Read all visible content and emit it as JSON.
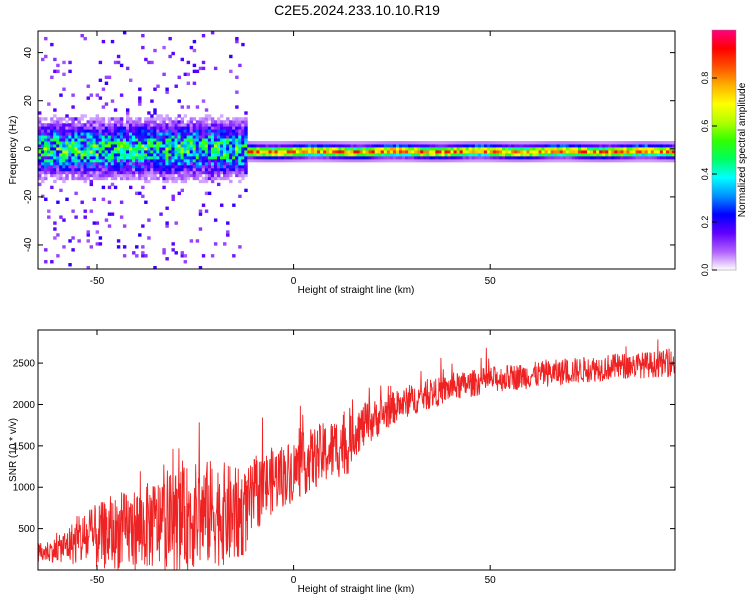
{
  "page": {
    "title": "C2E5.2024.233.10.10.R19"
  },
  "chart_data": [
    {
      "type": "heatmap",
      "title": "C2E5.2024.233.10.10.R19",
      "xlabel": "Height of straight line (km)",
      "ylabel": "Frequency (Hz)",
      "xlim": [
        -65,
        97
      ],
      "ylim": [
        -50,
        49
      ],
      "x_ticks": [
        -50,
        0,
        50
      ],
      "y_ticks": [
        -40,
        -20,
        0,
        20,
        40
      ],
      "colorbar": {
        "label": "Normalized spectral amplitude",
        "range": [
          0,
          1
        ],
        "ticks": [
          "0.0",
          "0.2",
          "0.4",
          "0.6",
          "0.8"
        ],
        "colors": [
          "#ffffff",
          "#b060ff",
          "#6000ff",
          "#0000ff",
          "#0090ff",
          "#00ffff",
          "#00ff60",
          "#30ff00",
          "#b0ff00",
          "#ffff00",
          "#ffb000",
          "#ff5000",
          "#ff0000",
          "#ff0080"
        ]
      },
      "features": [
        {
          "x_range": [
            -65,
            -12
          ],
          "center_freq": 0,
          "spread": 6,
          "peak": 0.55,
          "structure": "noisy scattered blobs"
        },
        {
          "x_range": [
            -12,
            97
          ],
          "center_freq": -1,
          "spread": 3,
          "peak": 0.9,
          "structure": "continuous narrow band"
        }
      ]
    },
    {
      "type": "line",
      "xlabel": "Height of straight line (km)",
      "ylabel": "SNR (10 * v/v)",
      "xlim": [
        -65,
        97
      ],
      "ylim": [
        0,
        2900
      ],
      "x_ticks": [
        -50,
        0,
        50
      ],
      "y_ticks": [
        500,
        1000,
        1500,
        2000,
        2500
      ],
      "color": "#ee2222",
      "trend": {
        "x": [
          -65,
          -60,
          -55,
          -50,
          -45,
          -40,
          -35,
          -30,
          -25,
          -20,
          -15,
          -12,
          -10,
          -5,
          0,
          5,
          10,
          13,
          14,
          15,
          20,
          25,
          30,
          40,
          50,
          60,
          70,
          80,
          90,
          97
        ],
        "mean": [
          200,
          250,
          350,
          400,
          450,
          500,
          550,
          600,
          650,
          700,
          650,
          700,
          900,
          1100,
          1200,
          1350,
          1450,
          1550,
          1450,
          1650,
          1800,
          1950,
          2050,
          2200,
          2300,
          2350,
          2400,
          2450,
          2480,
          2500
        ],
        "variability": [
          120,
          150,
          300,
          400,
          450,
          500,
          550,
          600,
          650,
          650,
          600,
          500,
          450,
          400,
          380,
          380,
          380,
          400,
          300,
          300,
          250,
          200,
          180,
          170,
          160,
          160,
          160,
          160,
          160,
          160
        ]
      }
    }
  ]
}
